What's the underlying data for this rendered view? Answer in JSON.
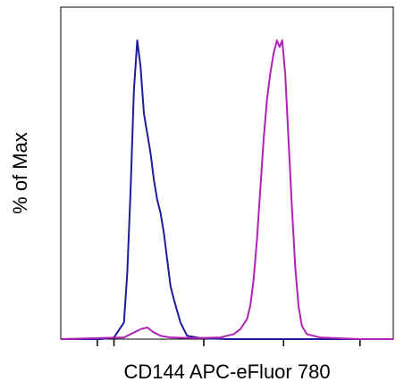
{
  "chart_data": {
    "type": "line",
    "xlabel": "CD144 APC-eFluor 780",
    "ylabel": "% of Max",
    "xlim": [
      0,
      100
    ],
    "ylim": [
      0,
      100
    ],
    "xticks": [
      11,
      16,
      43,
      67,
      90
    ],
    "series": [
      {
        "color": "#1c1c9c",
        "x": [
          0,
          12,
          16,
          19,
          20,
          21,
          22,
          23,
          24,
          25,
          26,
          27,
          28,
          29,
          30,
          31,
          32,
          33,
          34,
          36,
          38,
          42,
          50,
          100
        ],
        "values": [
          0,
          0,
          0.5,
          5,
          20,
          45,
          75,
          90,
          82,
          68,
          62,
          56,
          48,
          42,
          38,
          32,
          24,
          16,
          12,
          5,
          1,
          0.3,
          0,
          0
        ]
      },
      {
        "color": "#b022b4",
        "x": [
          0,
          19,
          21,
          24,
          26,
          28,
          30,
          33,
          40,
          48,
          52,
          54,
          56,
          57,
          58,
          59,
          60,
          61,
          62,
          63,
          64,
          65,
          65.8,
          66.6,
          67.5,
          68.5,
          69.5,
          70.5,
          71.5,
          72.5,
          74,
          78,
          90,
          100
        ],
        "values": [
          0,
          0.5,
          1.5,
          3,
          3.5,
          2,
          1,
          0.5,
          0.3,
          0.5,
          1.5,
          3,
          6,
          10,
          18,
          30,
          45,
          60,
          72,
          80,
          86,
          90,
          88,
          90,
          80,
          60,
          40,
          22,
          10,
          4,
          1.5,
          0.5,
          0,
          0
        ]
      }
    ]
  }
}
